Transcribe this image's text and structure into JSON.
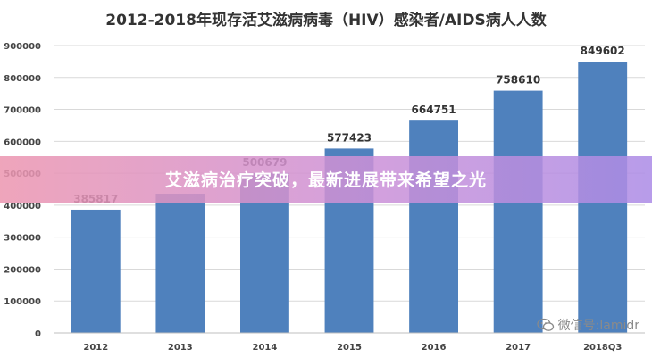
{
  "chart_data": {
    "type": "bar",
    "title": "2012-2018年现存活艾滋病病毒（HIV）感染者/AIDS病人人数",
    "categories": [
      "2012",
      "2013",
      "2014",
      "2015",
      "2016",
      "2017",
      "2018Q3"
    ],
    "values": [
      385817,
      436000,
      500679,
      577423,
      664751,
      758610,
      849602
    ],
    "data_labels": [
      "385817",
      "",
      "500679",
      "577423",
      "664751",
      "758610",
      "849602"
    ],
    "y_ticks": [
      "0",
      "100000",
      "200000",
      "300000",
      "400000",
      "500000",
      "600000",
      "700000",
      "800000",
      "900000"
    ],
    "ylim": [
      0,
      900000
    ],
    "grid": true,
    "bar_color": "#4f81bd"
  },
  "overlay": {
    "banner_text": "艾滋病治疗突破，最新进展带来希望之光",
    "watermark_text": "微信号:lamidr",
    "watermark_icon": "wechat-icon"
  }
}
